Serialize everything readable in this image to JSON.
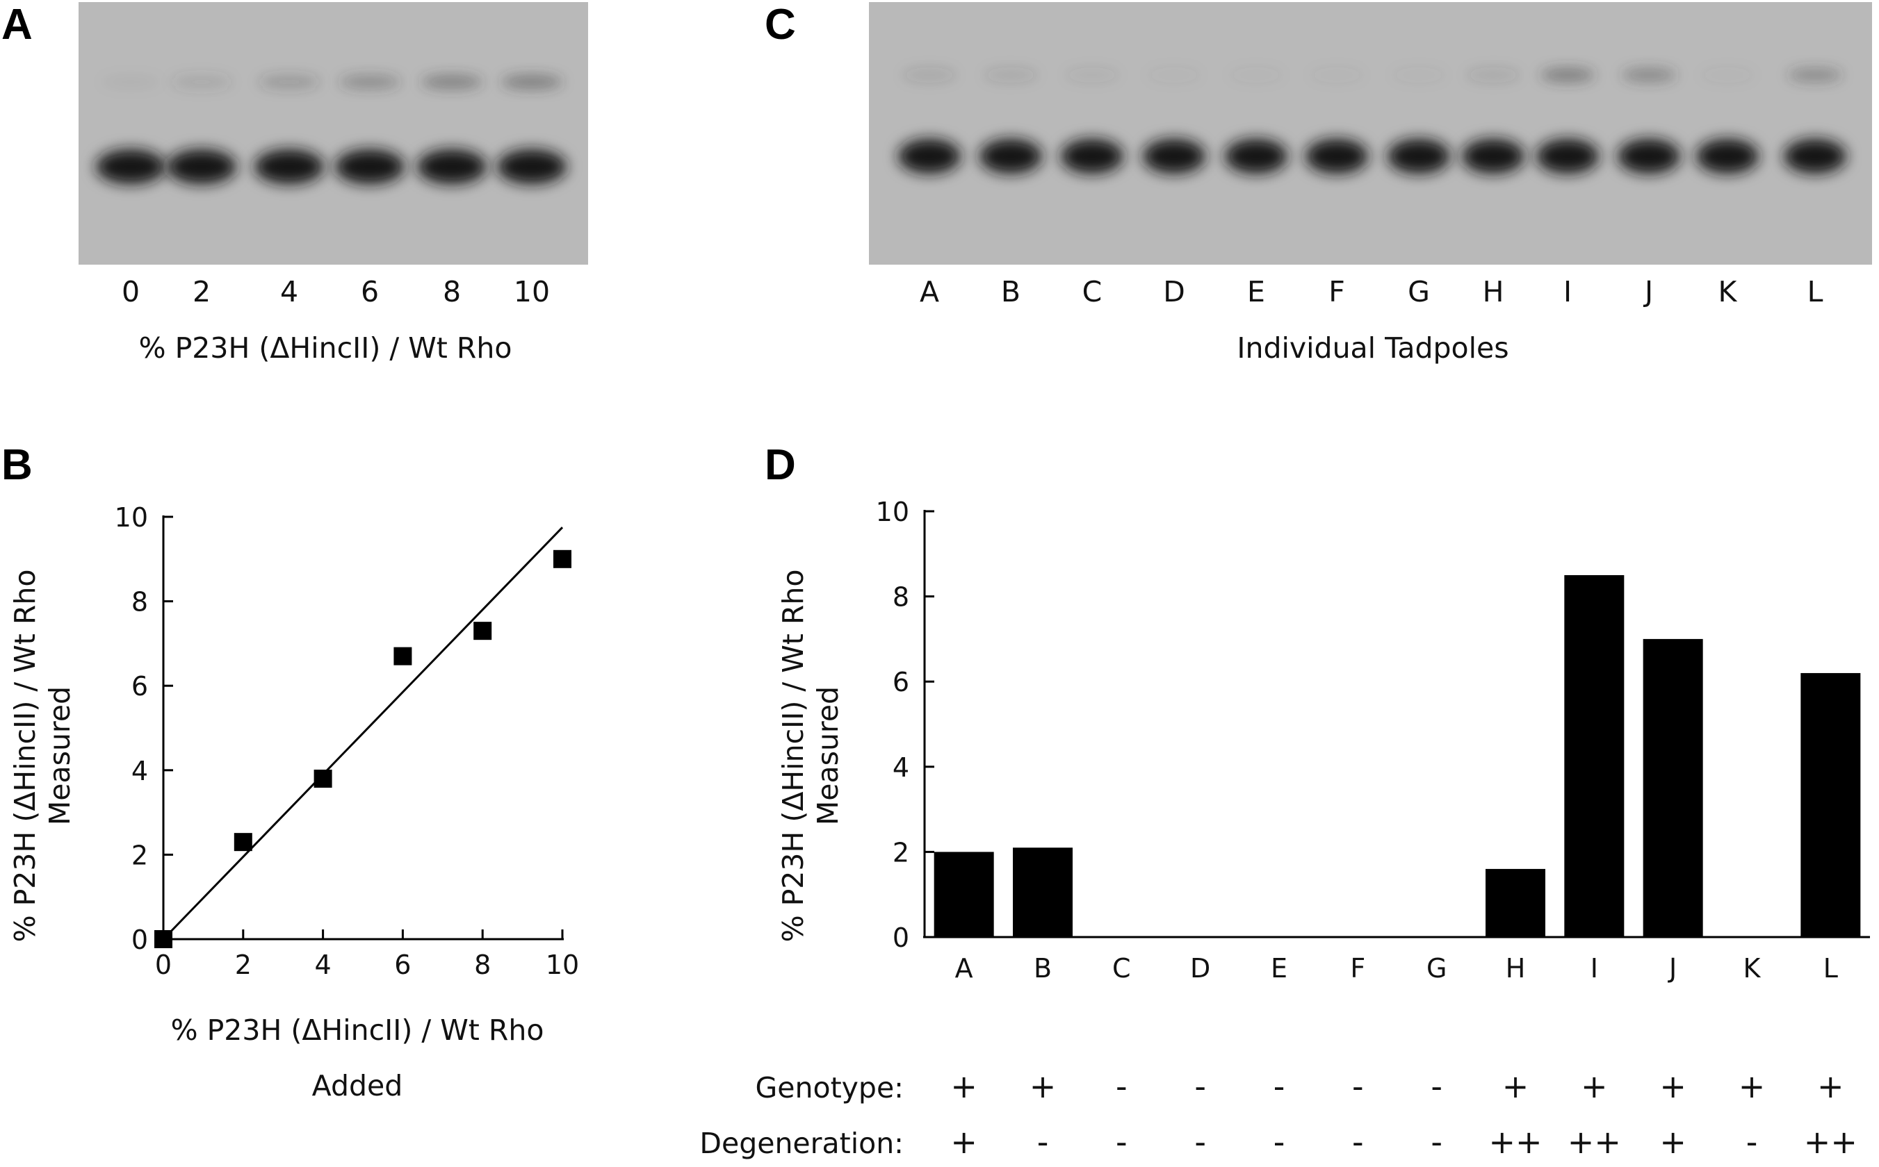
{
  "panels": {
    "a": {
      "letter": "A",
      "lane_labels": [
        "0",
        "2",
        "4",
        "6",
        "8",
        "10"
      ],
      "xlabel": "% P23H (ΔHincII)  / Wt Rho",
      "lane_signal": [
        0,
        2,
        4,
        6,
        8,
        10
      ]
    },
    "c": {
      "letter": "C",
      "lane_labels": [
        "A",
        "B",
        "C",
        "D",
        "E",
        "F",
        "G",
        "H",
        "I",
        "J",
        "K",
        "L"
      ],
      "xlabel": "Individual Tadpoles",
      "lane_signal": [
        1.8,
        1.6,
        0.8,
        0.2,
        0.2,
        0.2,
        0.2,
        1.6,
        8.5,
        7.0,
        0.2,
        6.2
      ]
    },
    "b": {
      "letter": "B"
    },
    "d": {
      "letter": "D"
    }
  },
  "chart_data": [
    {
      "id": "b",
      "type": "scatter",
      "x": [
        0,
        2,
        4,
        6,
        8,
        10
      ],
      "y": [
        0,
        2.3,
        3.8,
        6.7,
        7.3,
        9.0
      ],
      "fit_line": {
        "x": [
          0,
          10
        ],
        "y": [
          0,
          9.75
        ]
      },
      "xlim": [
        0,
        10
      ],
      "ylim": [
        0,
        10
      ],
      "xticks": [
        "0",
        "2",
        "4",
        "6",
        "8",
        "10"
      ],
      "yticks": [
        "0",
        "2",
        "4",
        "6",
        "8",
        "10"
      ],
      "xlabel": [
        "% P23H (ΔHincII)  / Wt Rho",
        "Added"
      ],
      "ylabel": [
        "% P23H (ΔHincII)  / Wt Rho",
        "Measured"
      ]
    },
    {
      "id": "d",
      "type": "bar",
      "categories": [
        "A",
        "B",
        "C",
        "D",
        "E",
        "F",
        "G",
        "H",
        "I",
        "J",
        "K",
        "L"
      ],
      "values": [
        2.0,
        2.1,
        0,
        0,
        0,
        0,
        0,
        1.6,
        8.5,
        7.0,
        0,
        6.2
      ],
      "ylim": [
        0,
        10
      ],
      "yticks": [
        "0",
        "2",
        "4",
        "6",
        "8",
        "10"
      ],
      "ylabel": [
        "% P23H (ΔHincII)  / Wt Rho",
        "Measured"
      ],
      "rows": [
        {
          "label": "Genotype:",
          "values": [
            "+",
            "+",
            "-",
            "-",
            "-",
            "-",
            "-",
            "+",
            "+",
            "+",
            "+",
            "+"
          ]
        },
        {
          "label": "Degeneration:",
          "values": [
            "+",
            "-",
            "-",
            "-",
            "-",
            "-",
            "-",
            "++",
            "++",
            "+",
            "-",
            "++"
          ]
        }
      ]
    }
  ],
  "colors": {
    "gel_bg": "#b9b9b9",
    "band": "#151515",
    "ink": "#111111"
  }
}
